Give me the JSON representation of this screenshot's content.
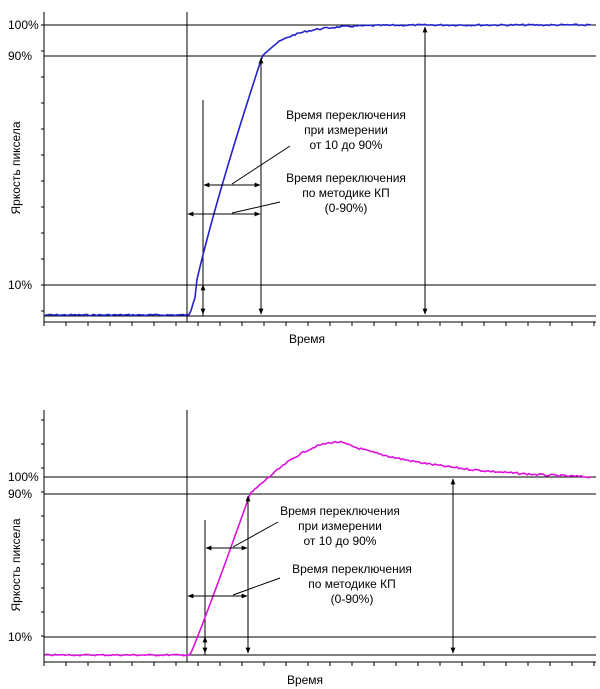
{
  "panels": [
    {
      "ylabel": "Яркость пиксела",
      "xlabel": "Время",
      "level_labels": [
        "100%",
        "90%",
        "10%"
      ],
      "annotation_1": [
        "Время переключения",
        "при измерении",
        "от 10 до 90%"
      ],
      "annotation_2": [
        "Время переключения",
        "по методике КП",
        "(0-90%)"
      ],
      "curve_color": "#2222cc",
      "overshoot": false
    },
    {
      "ylabel": "Яркость пиксела",
      "xlabel": "Время",
      "level_labels": [
        "100%",
        "90%",
        "10%"
      ],
      "annotation_1": [
        "Время переключения",
        "при измерении",
        "от 10 до 90%"
      ],
      "annotation_2": [
        "Время переключения",
        "по методике КП",
        "(0-90%)"
      ],
      "curve_color": "#dd11dd",
      "overshoot": true
    }
  ]
}
